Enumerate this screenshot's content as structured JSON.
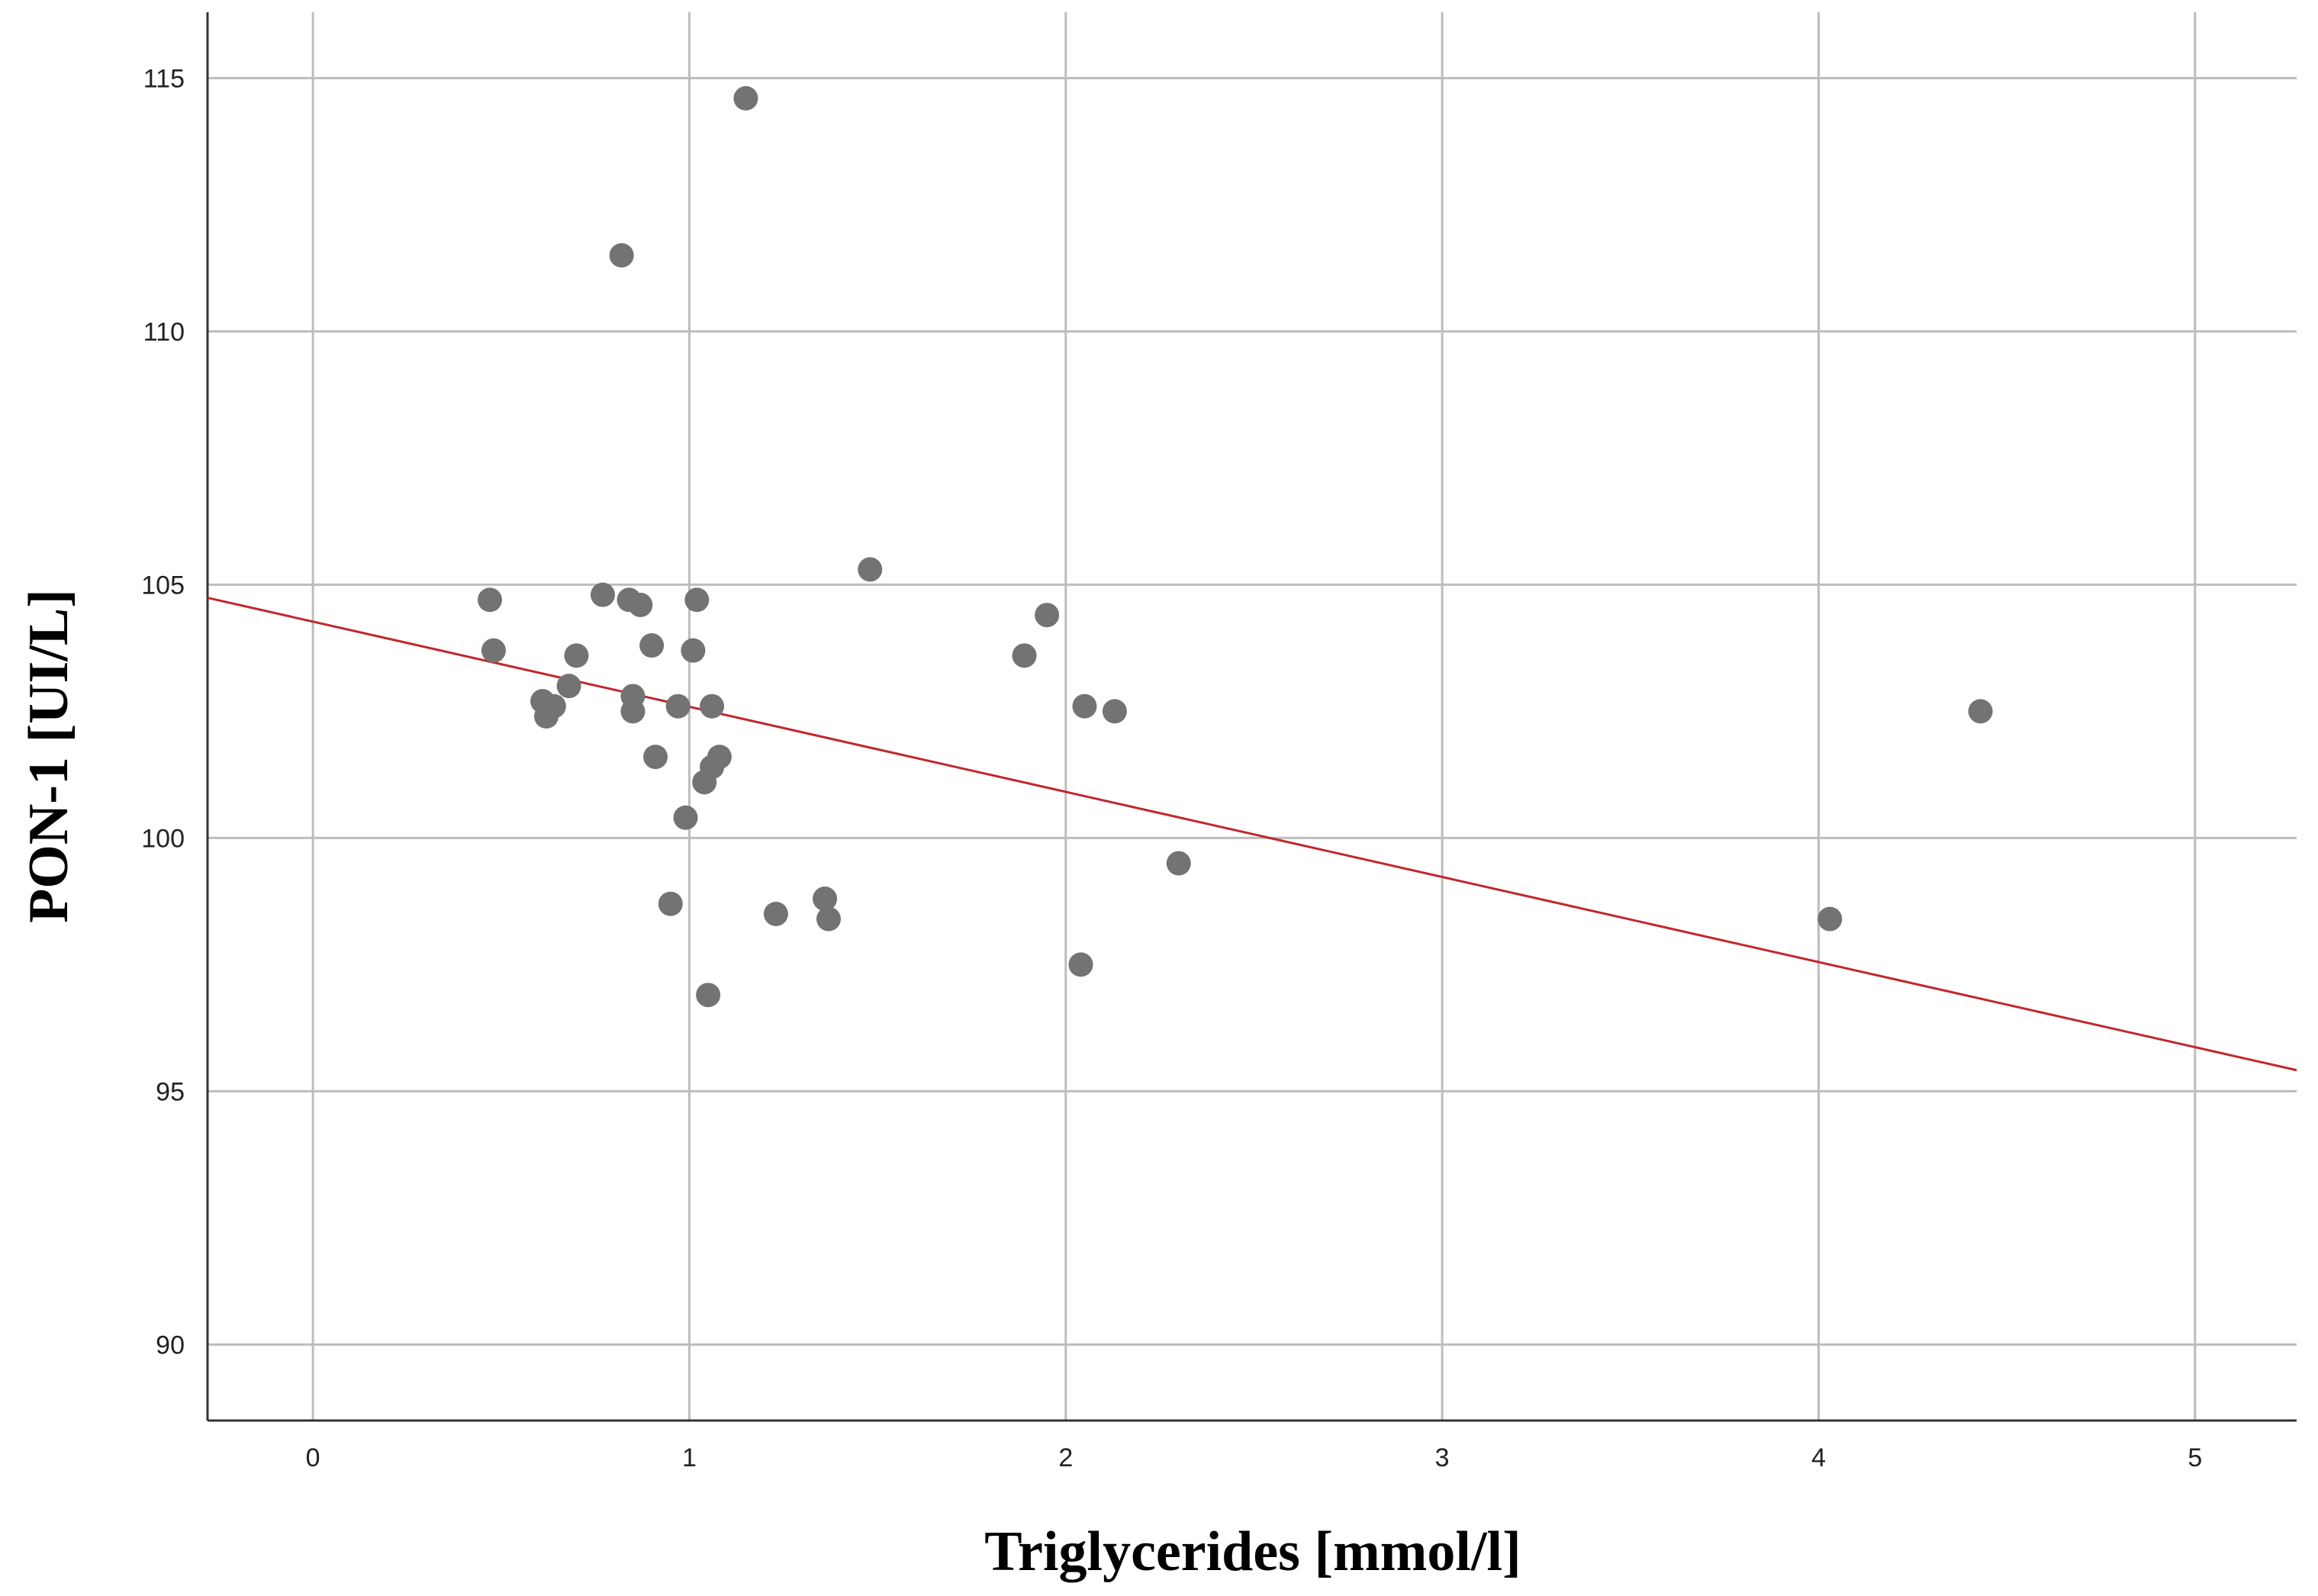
{
  "chart_data": {
    "type": "scatter",
    "title": "",
    "xlabel": "Triglycerides [mmol/l]",
    "ylabel": "PON-1 [UI/L]",
    "xlim": [
      -0.28,
      5.27
    ],
    "ylim": [
      88.5,
      116.3
    ],
    "xticks": [
      0,
      1,
      2,
      3,
      4,
      5
    ],
    "yticks": [
      90,
      95,
      100,
      105,
      110,
      115
    ],
    "grid": true,
    "point_color": "#737373",
    "fit_line_color": "#c0282c",
    "points": [
      {
        "x": 0.47,
        "y": 104.7
      },
      {
        "x": 0.48,
        "y": 103.7
      },
      {
        "x": 0.61,
        "y": 102.7
      },
      {
        "x": 0.62,
        "y": 102.4
      },
      {
        "x": 0.64,
        "y": 102.6
      },
      {
        "x": 0.68,
        "y": 103.0
      },
      {
        "x": 0.7,
        "y": 103.6
      },
      {
        "x": 0.77,
        "y": 104.8
      },
      {
        "x": 0.82,
        "y": 111.5
      },
      {
        "x": 0.84,
        "y": 104.7
      },
      {
        "x": 0.85,
        "y": 102.8
      },
      {
        "x": 0.85,
        "y": 102.5
      },
      {
        "x": 0.87,
        "y": 104.6
      },
      {
        "x": 0.9,
        "y": 103.8
      },
      {
        "x": 0.91,
        "y": 101.6
      },
      {
        "x": 0.95,
        "y": 98.7
      },
      {
        "x": 0.97,
        "y": 102.6
      },
      {
        "x": 0.99,
        "y": 100.4
      },
      {
        "x": 1.01,
        "y": 103.7
      },
      {
        "x": 1.02,
        "y": 104.7
      },
      {
        "x": 1.04,
        "y": 101.1
      },
      {
        "x": 1.05,
        "y": 96.9
      },
      {
        "x": 1.06,
        "y": 102.6
      },
      {
        "x": 1.06,
        "y": 101.4
      },
      {
        "x": 1.08,
        "y": 101.6
      },
      {
        "x": 1.15,
        "y": 114.6
      },
      {
        "x": 1.23,
        "y": 98.5
      },
      {
        "x": 1.36,
        "y": 98.8
      },
      {
        "x": 1.37,
        "y": 98.4
      },
      {
        "x": 1.48,
        "y": 105.3
      },
      {
        "x": 1.89,
        "y": 103.6
      },
      {
        "x": 1.95,
        "y": 104.4
      },
      {
        "x": 2.04,
        "y": 97.5
      },
      {
        "x": 2.05,
        "y": 102.6
      },
      {
        "x": 2.13,
        "y": 102.5
      },
      {
        "x": 2.3,
        "y": 99.5
      },
      {
        "x": 4.03,
        "y": 98.4
      },
      {
        "x": 4.43,
        "y": 102.5
      }
    ],
    "fit_line": {
      "intercept": 104.27,
      "slope": -1.68
    }
  }
}
